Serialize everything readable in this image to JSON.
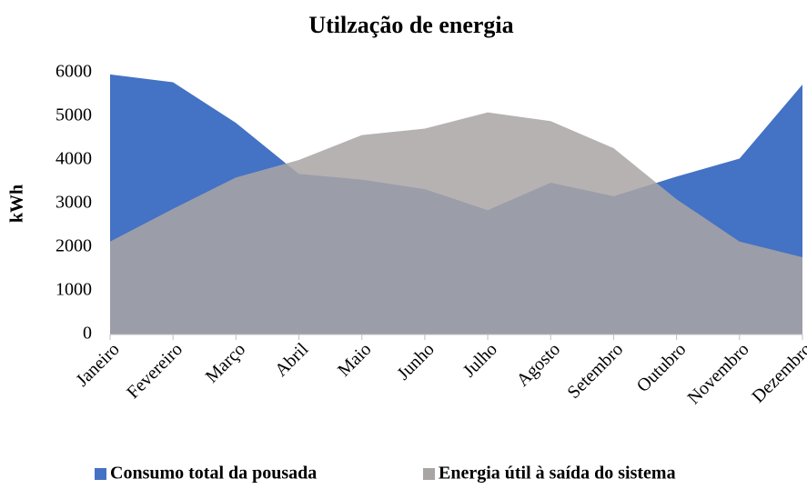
{
  "chart_data": {
    "type": "area",
    "title": "Utilzação de energia",
    "y_label": "kWh",
    "categories": [
      "Janeiro",
      "Fevereiro",
      "Março",
      "Abril",
      "Maio",
      "Junho",
      "Julho",
      "Agosto",
      "Setembro",
      "Outubro",
      "Novembro",
      "Dezembro"
    ],
    "series": [
      {
        "name": "Consumo total da pousada",
        "color": "#4472c4",
        "values": [
          5960,
          5780,
          4850,
          3680,
          3550,
          3330,
          2850,
          3480,
          3170,
          3620,
          4030,
          5730
        ]
      },
      {
        "name": "Energia útil à saída do sistema",
        "color": "#aaa5a5",
        "values": [
          2130,
          2880,
          3600,
          4000,
          4570,
          4720,
          5090,
          4890,
          4270,
          3100,
          2130,
          1770
        ]
      }
    ],
    "ylim": [
      0,
      6000
    ],
    "yticks": [
      0,
      1000,
      2000,
      3000,
      4000,
      5000,
      6000
    ],
    "grid": false,
    "legend": "bottom"
  }
}
